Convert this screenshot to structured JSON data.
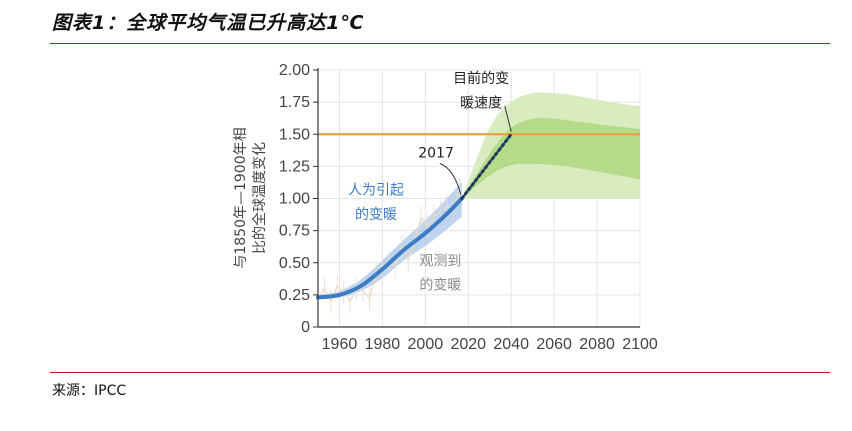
{
  "header": {
    "title": "图表1：全球平均气温已升高达1℃"
  },
  "footer": {
    "source": "来源：IPCC"
  },
  "chart_data": {
    "type": "line",
    "title": "",
    "ylabel": "与1850年—1900年相比的全球温度变化",
    "ylabel_lines": [
      "与1850年—1900年相",
      "比的全球温度变化"
    ],
    "xlabel": "",
    "xlim": [
      1950,
      2100
    ],
    "ylim": [
      0,
      2.0
    ],
    "x_ticks": [
      1960,
      1980,
      2000,
      2020,
      2040,
      2060,
      2080,
      2100
    ],
    "y_ticks": [
      "0",
      "0.25",
      "0.50",
      "0.75",
      "1.00",
      "1.25",
      "1.50",
      "1.75",
      "2.00"
    ],
    "reference_line": {
      "y": 1.5,
      "color": "#e8a33c"
    },
    "series": [
      {
        "name": "人为引起的变暖",
        "style": "solid",
        "color": "#3d7cc4",
        "x": [
          1950,
          1960,
          1970,
          1980,
          1990,
          2000,
          2010,
          2017
        ],
        "y": [
          0.23,
          0.25,
          0.32,
          0.45,
          0.6,
          0.73,
          0.88,
          1.0
        ],
        "band_likely": {
          "lower": [
            0.22,
            0.23,
            0.28,
            0.38,
            0.52,
            0.63,
            0.76,
            0.86
          ],
          "upper": [
            0.25,
            0.28,
            0.37,
            0.52,
            0.68,
            0.83,
            1.0,
            1.13
          ]
        }
      },
      {
        "name": "目前的变暖速度",
        "style": "dotted",
        "color": "#1f3a5c",
        "x": [
          2017,
          2040
        ],
        "y": [
          1.0,
          1.5
        ]
      }
    ],
    "projection": {
      "color_outer": "#d9ecc0",
      "color_inner": "#b5da8a",
      "x": [
        2017,
        2030,
        2040,
        2050,
        2060,
        2070,
        2080,
        2090,
        2100
      ],
      "outer_lower": [
        1.0,
        1.0,
        1.0,
        1.0,
        1.0,
        1.0,
        1.0,
        1.0,
        1.0
      ],
      "outer_upper": [
        1.0,
        1.55,
        1.75,
        1.82,
        1.82,
        1.8,
        1.77,
        1.74,
        1.72
      ],
      "inner_lower": [
        1.0,
        1.18,
        1.26,
        1.27,
        1.26,
        1.24,
        1.21,
        1.18,
        1.15
      ],
      "inner_upper": [
        1.0,
        1.35,
        1.55,
        1.62,
        1.62,
        1.6,
        1.58,
        1.56,
        1.54
      ]
    },
    "observed": {
      "name": "观测到的变暖",
      "color": "#e6dccb",
      "x": [
        1950,
        1953,
        1956,
        1959,
        1962,
        1965,
        1968,
        1971,
        1974,
        1977,
        1980,
        1983,
        1986,
        1989,
        1992,
        1995,
        1998,
        2001,
        2004,
        2007,
        2010,
        2013,
        2016
      ],
      "y": [
        0.22,
        0.3,
        0.2,
        0.32,
        0.27,
        0.2,
        0.3,
        0.28,
        0.22,
        0.42,
        0.48,
        0.5,
        0.47,
        0.62,
        0.52,
        0.66,
        0.85,
        0.78,
        0.86,
        0.9,
        0.94,
        0.92,
        1.08
      ]
    },
    "annotations": [
      {
        "text": "目前的变",
        "x": 2026,
        "y": 1.9,
        "color": "#222222"
      },
      {
        "text": "暖速度",
        "x": 2026,
        "y": 1.71,
        "color": "#222222"
      },
      {
        "text": "2017",
        "x": 2005,
        "y": 1.32,
        "color": "#222222"
      },
      {
        "text": "人为引起",
        "x": 1977,
        "y": 1.03,
        "color": "#3d7cc4"
      },
      {
        "text": "的变暖",
        "x": 1977,
        "y": 0.84,
        "color": "#3d7cc4"
      },
      {
        "text": "观测到",
        "x": 2007,
        "y": 0.48,
        "color": "#8a8a8a"
      },
      {
        "text": "的变暖",
        "x": 2007,
        "y": 0.29,
        "color": "#8a8a8a"
      }
    ]
  }
}
